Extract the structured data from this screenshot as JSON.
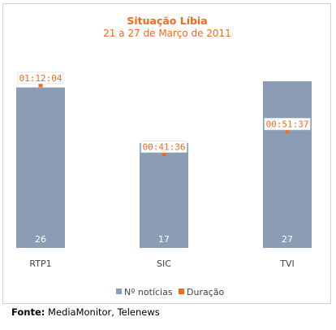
{
  "chart_data": {
    "type": "bar",
    "title": "Situação Líbia",
    "subtitle": "21 a 27 de Março de 2011",
    "categories": [
      "RTP1",
      "SIC",
      "TVI"
    ],
    "series": [
      {
        "name": "Nº notícias",
        "kind": "bar",
        "color": "#8a9db5",
        "values": [
          26,
          17,
          27
        ]
      },
      {
        "name": "Duração",
        "kind": "point",
        "color": "#f26b1d",
        "values": [
          "01:12:04",
          "00:41:36",
          "00:51:37"
        ],
        "seconds": [
          4324,
          2496,
          3097
        ]
      }
    ],
    "legend_position": "bottom",
    "grid": false
  },
  "source": {
    "label": "Fonte:",
    "text": "MediaMonitor, Telenews"
  }
}
